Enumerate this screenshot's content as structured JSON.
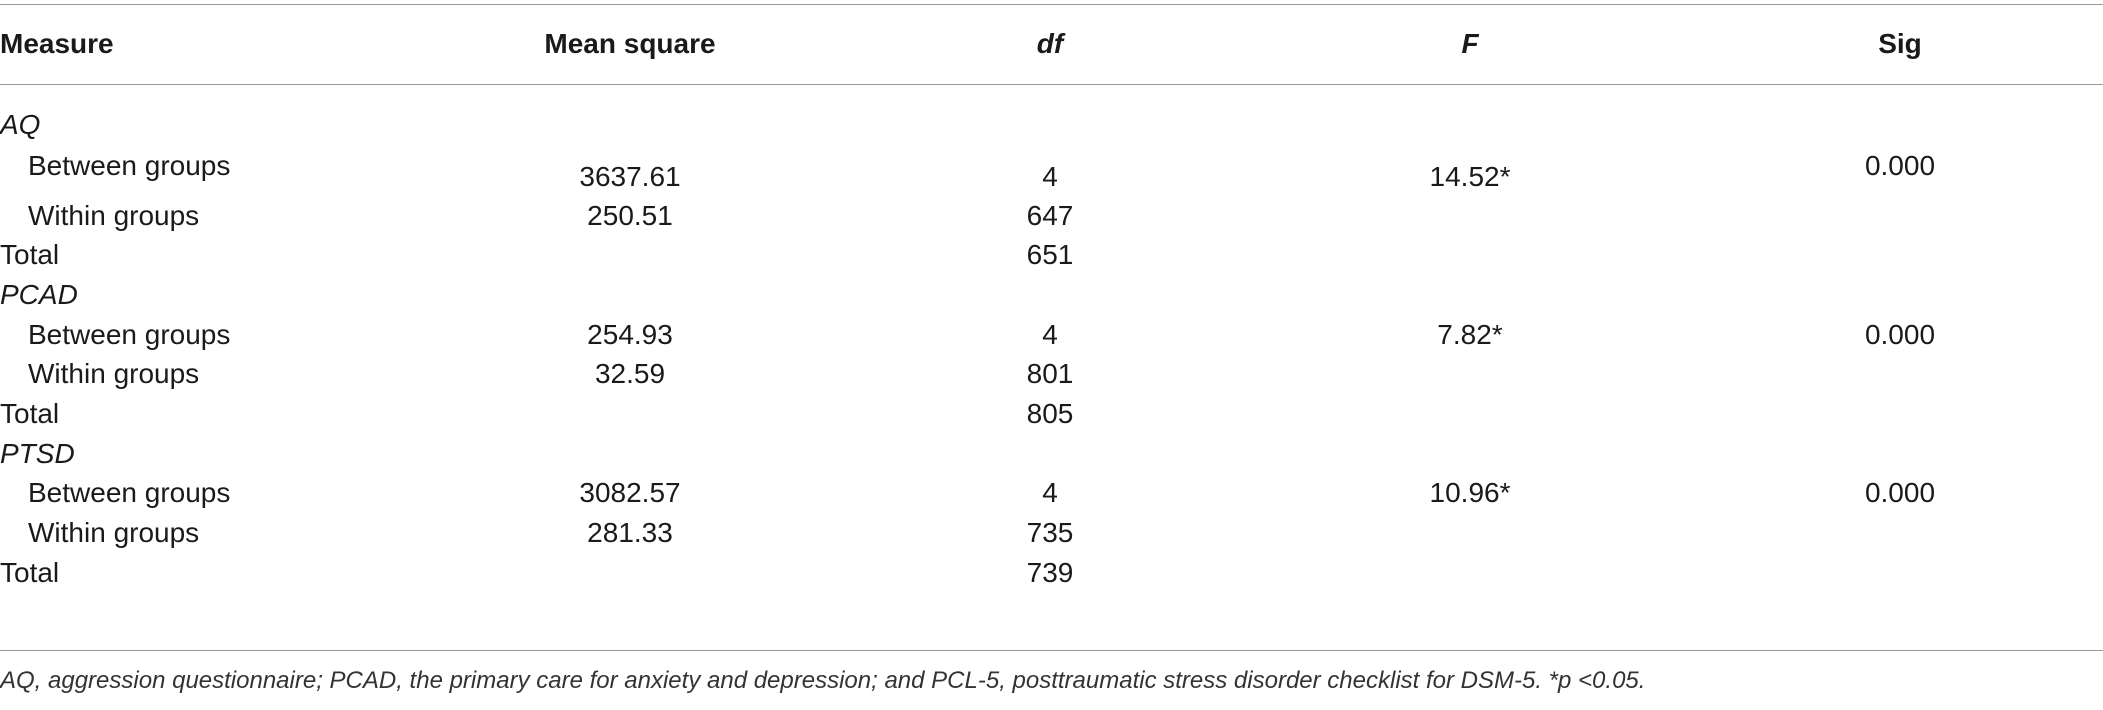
{
  "header": {
    "measure": "Measure",
    "mean_square": "Mean square",
    "df": "df",
    "f": "F",
    "sig": "Sig"
  },
  "groups": [
    {
      "name": "AQ",
      "between": {
        "label": "Between groups",
        "ms": "3637.61",
        "df": "4",
        "f": "14.52*",
        "sig": "0.000"
      },
      "within": {
        "label": "Within groups",
        "ms": "250.51",
        "df": "647"
      },
      "total": {
        "label": "Total",
        "df": "651"
      }
    },
    {
      "name": "PCAD",
      "between": {
        "label": "Between groups",
        "ms": "254.93",
        "df": "4",
        "f": "7.82*",
        "sig": "0.000"
      },
      "within": {
        "label": "Within groups",
        "ms": "32.59",
        "df": "801"
      },
      "total": {
        "label": "Total",
        "df": "805"
      }
    },
    {
      "name": "PTSD",
      "between": {
        "label": "Between groups",
        "ms": "3082.57",
        "df": "4",
        "f": "10.96*",
        "sig": "0.000"
      },
      "within": {
        "label": "Within groups",
        "ms": "281.33",
        "df": "735"
      },
      "total": {
        "label": "Total",
        "df": "739"
      }
    }
  ],
  "footnote": "AQ, aggression questionnaire; PCAD, the primary care for anxiety and depression; and PCL-5, posttraumatic stress disorder checklist for DSM-5. *p <0.05."
}
